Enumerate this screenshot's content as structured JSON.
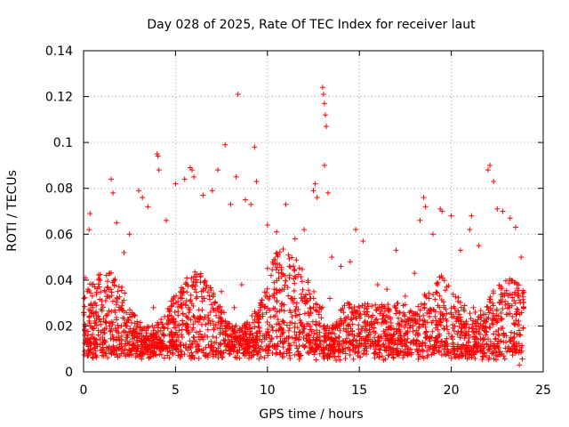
{
  "chart_data": {
    "type": "scatter",
    "title": "Day 028 of 2025, Rate Of TEC Index for receiver laut",
    "xlabel": "GPS time / hours",
    "ylabel": "ROTI / TECUs",
    "xlim": [
      0,
      25
    ],
    "ylim": [
      0,
      0.14
    ],
    "xticks": [
      0,
      5,
      10,
      15,
      20,
      25
    ],
    "xtick_labels": [
      "0",
      "5",
      "10",
      "15",
      "20",
      "25"
    ],
    "yticks": [
      0,
      0.02,
      0.04,
      0.06,
      0.08,
      0.1,
      0.12,
      0.14
    ],
    "ytick_labels": [
      "0",
      "0.02",
      "0.04",
      "0.06",
      "0.08",
      "0.1",
      "0.12",
      "0.14"
    ],
    "grid": true,
    "marker": "plus",
    "color": "#ff0000",
    "series": [
      {
        "name": "ROTI",
        "points": [
          [
            0.1,
            0.041
          ],
          [
            0.2,
            0.035
          ],
          [
            0.3,
            0.062
          ],
          [
            0.35,
            0.069
          ],
          [
            0.5,
            0.028
          ],
          [
            1.0,
            0.031
          ],
          [
            1.5,
            0.084
          ],
          [
            1.6,
            0.078
          ],
          [
            1.8,
            0.065
          ],
          [
            2.2,
            0.052
          ],
          [
            2.5,
            0.06
          ],
          [
            3.0,
            0.079
          ],
          [
            3.2,
            0.076
          ],
          [
            3.5,
            0.072
          ],
          [
            4.0,
            0.095
          ],
          [
            4.05,
            0.094
          ],
          [
            4.1,
            0.088
          ],
          [
            4.5,
            0.066
          ],
          [
            5.0,
            0.082
          ],
          [
            5.5,
            0.084
          ],
          [
            5.8,
            0.089
          ],
          [
            5.9,
            0.088
          ],
          [
            6.0,
            0.085
          ],
          [
            6.5,
            0.077
          ],
          [
            7.0,
            0.079
          ],
          [
            7.3,
            0.088
          ],
          [
            7.7,
            0.099
          ],
          [
            8.0,
            0.073
          ],
          [
            8.3,
            0.085
          ],
          [
            8.4,
            0.121
          ],
          [
            8.8,
            0.075
          ],
          [
            9.1,
            0.073
          ],
          [
            9.3,
            0.098
          ],
          [
            9.4,
            0.083
          ],
          [
            10.0,
            0.064
          ],
          [
            10.5,
            0.061
          ],
          [
            11.0,
            0.073
          ],
          [
            11.5,
            0.058
          ],
          [
            12.0,
            0.062
          ],
          [
            12.5,
            0.079
          ],
          [
            12.6,
            0.082
          ],
          [
            12.7,
            0.076
          ],
          [
            13.0,
            0.124
          ],
          [
            13.05,
            0.121
          ],
          [
            13.1,
            0.117
          ],
          [
            13.15,
            0.112
          ],
          [
            13.2,
            0.107
          ],
          [
            13.1,
            0.09
          ],
          [
            13.3,
            0.078
          ],
          [
            13.5,
            0.05
          ],
          [
            14.0,
            0.046
          ],
          [
            14.5,
            0.048
          ],
          [
            14.8,
            0.062
          ],
          [
            15.2,
            0.057
          ],
          [
            16.0,
            0.038
          ],
          [
            16.5,
            0.036
          ],
          [
            17.0,
            0.053
          ],
          [
            17.5,
            0.033
          ],
          [
            18.0,
            0.043
          ],
          [
            18.3,
            0.066
          ],
          [
            18.5,
            0.076
          ],
          [
            18.6,
            0.072
          ],
          [
            19.0,
            0.06
          ],
          [
            19.4,
            0.071
          ],
          [
            19.5,
            0.07
          ],
          [
            20.0,
            0.068
          ],
          [
            20.5,
            0.053
          ],
          [
            21.0,
            0.062
          ],
          [
            21.1,
            0.068
          ],
          [
            21.5,
            0.055
          ],
          [
            22.0,
            0.088
          ],
          [
            22.1,
            0.09
          ],
          [
            22.3,
            0.083
          ],
          [
            22.5,
            0.071
          ],
          [
            22.8,
            0.07
          ],
          [
            23.2,
            0.067
          ],
          [
            23.5,
            0.063
          ],
          [
            23.8,
            0.05
          ],
          [
            0.05,
            0.009
          ],
          [
            0.4,
            0.012
          ],
          [
            0.8,
            0.018
          ],
          [
            1.2,
            0.022
          ],
          [
            1.4,
            0.011
          ],
          [
            1.9,
            0.015
          ],
          [
            2.3,
            0.02
          ],
          [
            2.7,
            0.025
          ],
          [
            3.1,
            0.009
          ],
          [
            3.4,
            0.017
          ],
          [
            3.8,
            0.028
          ],
          [
            4.2,
            0.014
          ],
          [
            4.4,
            0.006
          ],
          [
            4.8,
            0.022
          ],
          [
            5.2,
            0.018
          ],
          [
            5.6,
            0.031
          ],
          [
            6.2,
            0.012
          ],
          [
            6.6,
            0.024
          ],
          [
            7.1,
            0.019
          ],
          [
            7.5,
            0.035
          ],
          [
            7.9,
            0.011
          ],
          [
            8.2,
            0.028
          ],
          [
            8.6,
            0.038
          ],
          [
            9.0,
            0.015
          ],
          [
            9.6,
            0.027
          ],
          [
            9.9,
            0.033
          ],
          [
            10.2,
            0.042
          ],
          [
            10.6,
            0.021
          ],
          [
            10.9,
            0.036
          ],
          [
            11.2,
            0.046
          ],
          [
            11.6,
            0.03
          ],
          [
            11.9,
            0.017
          ],
          [
            12.2,
            0.039
          ],
          [
            12.8,
            0.025
          ],
          [
            13.4,
            0.032
          ],
          [
            13.8,
            0.019
          ],
          [
            14.2,
            0.023
          ],
          [
            14.6,
            0.012
          ],
          [
            15.0,
            0.028
          ],
          [
            15.5,
            0.016
          ],
          [
            15.8,
            0.008
          ],
          [
            16.2,
            0.021
          ],
          [
            16.7,
            0.014
          ],
          [
            17.2,
            0.026
          ],
          [
            17.7,
            0.01
          ],
          [
            18.1,
            0.018
          ],
          [
            18.8,
            0.032
          ],
          [
            19.2,
            0.015
          ],
          [
            19.7,
            0.023
          ],
          [
            20.2,
            0.009
          ],
          [
            20.7,
            0.019
          ],
          [
            21.2,
            0.028
          ],
          [
            21.7,
            0.012
          ],
          [
            22.2,
            0.021
          ],
          [
            22.6,
            0.016
          ],
          [
            23.0,
            0.025
          ],
          [
            23.4,
            0.011
          ],
          [
            23.7,
            0.003
          ],
          [
            23.9,
            0.019
          ]
        ]
      }
    ]
  }
}
